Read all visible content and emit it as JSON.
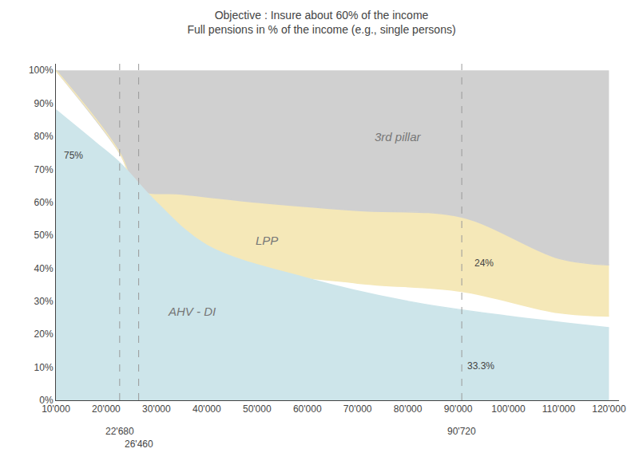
{
  "chart_data": {
    "type": "area",
    "title": "Objective : Insure about 60% of the income",
    "subtitle": "Full pensions in % of the income (e.g., single persons)",
    "series": [
      {
        "x": [
          10000,
          120000
        ],
        "values": [
          1.0,
          1.0
        ]
      },
      {
        "name": "3rd pillar",
        "color": "#d0d0d0",
        "x": [
          10000,
          22680,
          26460,
          35000,
          50000,
          70000,
          90720,
          110000,
          120000
        ],
        "values": [
          1.0,
          0.75,
          0.64,
          0.625,
          0.6,
          0.575,
          0.555,
          0.43,
          0.41
        ]
      },
      {
        "name": "LPP",
        "color": "#f5e8b8",
        "x": [
          10000,
          22680,
          26460,
          35000,
          50000,
          70000,
          90720,
          110000,
          120000
        ],
        "values": [
          1.0,
          0.75,
          0.615,
          0.5,
          0.4,
          0.355,
          0.33,
          0.265,
          0.255
        ]
      },
      {
        "name": "AHV - DI",
        "color": "#cde5ea",
        "x": [
          10000,
          18000,
          22680,
          30000,
          40000,
          60000,
          80000,
          100000,
          120000
        ],
        "values": [
          0.88,
          0.78,
          0.72,
          0.6,
          0.47,
          0.37,
          0.3,
          0.255,
          0.22
        ]
      }
    ],
    "annotations": [
      {
        "text": "75%"
      },
      {
        "text": "24%"
      },
      {
        "text": "33.3%"
      },
      {
        "x": 22680,
        "text": "22'680"
      },
      {
        "x": 26460,
        "text": "26'460"
      },
      {
        "x": 90720,
        "text": "90'720"
      }
    ],
    "xlim": [
      10000,
      122000
    ],
    "xticks": [
      {
        "value": 10000,
        "label": "10'000"
      },
      {
        "value": 20000,
        "label": "20'000"
      },
      {
        "value": 30000,
        "label": "30'000"
      },
      {
        "value": 40000,
        "label": "40'000"
      },
      {
        "value": 50000,
        "label": "50'000"
      },
      {
        "value": 60000,
        "label": "60'000"
      },
      {
        "value": 70000,
        "label": "70'000"
      },
      {
        "value": 80000,
        "label": "80'000"
      },
      {
        "value": 90000,
        "label": "90'000"
      },
      {
        "value": 100000,
        "label": "100'000"
      },
      {
        "value": 110000,
        "label": "110'000"
      },
      {
        "value": 120000,
        "label": "120'000"
      }
    ],
    "ylim": [
      0,
      1.02
    ],
    "yticks": [
      {
        "value": 0.0,
        "label": "0%"
      },
      {
        "value": 0.1,
        "label": "10%"
      },
      {
        "value": 0.2,
        "label": "20%"
      },
      {
        "value": 0.3,
        "label": "30%"
      },
      {
        "value": 0.4,
        "label": "40%"
      },
      {
        "value": 0.5,
        "label": "50%"
      },
      {
        "value": 0.6,
        "label": "60%"
      },
      {
        "value": 0.7,
        "label": "70%"
      },
      {
        "value": 0.8,
        "label": "80%"
      },
      {
        "value": 0.9,
        "label": "90%"
      },
      {
        "value": 1.0,
        "label": "100%"
      }
    ],
    "grid": false
  }
}
